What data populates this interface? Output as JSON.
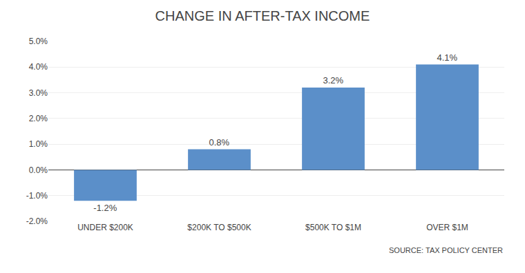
{
  "chart_data": {
    "type": "bar",
    "title": "CHANGE IN AFTER-TAX INCOME",
    "categories": [
      "UNDER $200K",
      "$200K TO $500K",
      "$500K TO $1M",
      "OVER $1M"
    ],
    "values": [
      -1.2,
      0.8,
      3.2,
      4.1
    ],
    "value_labels": [
      "-1.2%",
      "0.8%",
      "3.2%",
      "4.1%"
    ],
    "data_labels": true,
    "color": "#5b8fc9",
    "ylim": [
      -2.0,
      5.0
    ],
    "yticks": [
      {
        "value": -2.0,
        "label": "-2.0%"
      },
      {
        "value": -1.0,
        "label": "-1.0%"
      },
      {
        "value": 0.0,
        "label": "0.0%"
      },
      {
        "value": 1.0,
        "label": "1.0%"
      },
      {
        "value": 2.0,
        "label": "2.0%"
      },
      {
        "value": 3.0,
        "label": "3.0%"
      },
      {
        "value": 4.0,
        "label": "4.0%"
      },
      {
        "value": 5.0,
        "label": "5.0%"
      }
    ],
    "grid": true,
    "annotations": [
      "SOURCE: TAX POLICY CENTER"
    ]
  }
}
